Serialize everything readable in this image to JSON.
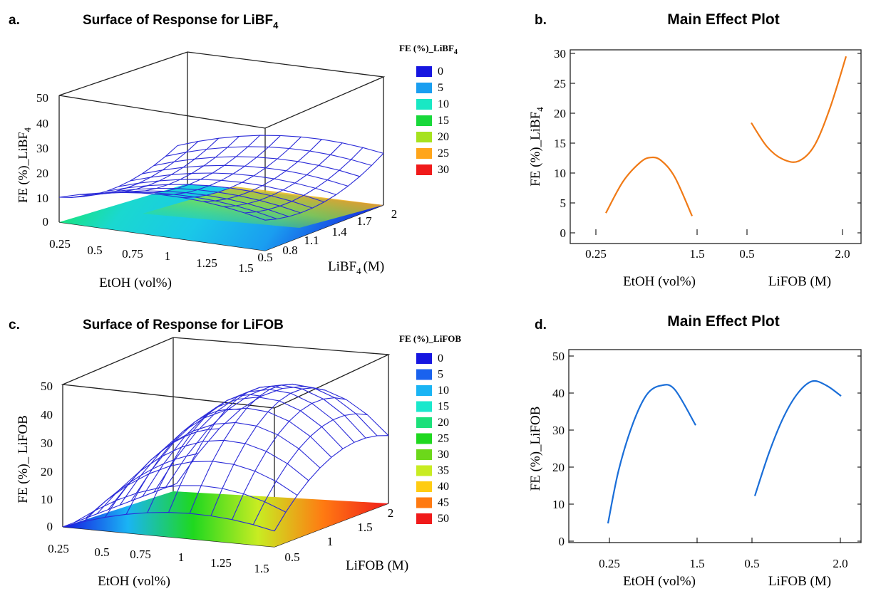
{
  "panels": {
    "a": {
      "letter": "a.",
      "title": "Surface of Response for LiBF",
      "title_sub": "4",
      "zaxis_label": "FE (%)_LiBF",
      "zaxis_label_sub": "4",
      "zaxis_ticks": [
        "0",
        "10",
        "20",
        "30",
        "40",
        "50"
      ],
      "xaxis_label": "EtOH (vol%)",
      "xaxis_ticks": [
        "0.25",
        "0.5",
        "0.75",
        "1",
        "1.25",
        "1.5"
      ],
      "yaxis_label_pre": "LiBF",
      "yaxis_label_sub": "4",
      "yaxis_label_post": "(M)",
      "yaxis_ticks": [
        "0.5",
        "0.8",
        "1.1",
        "1.4",
        "1.7",
        "2"
      ],
      "legend_title": "FE (%)_LiBF",
      "legend_title_sub": "4",
      "legend": [
        {
          "label": "0",
          "color": "#1616e0"
        },
        {
          "label": "5",
          "color": "#1a9ef0"
        },
        {
          "label": "10",
          "color": "#19e8c4"
        },
        {
          "label": "15",
          "color": "#18d83a"
        },
        {
          "label": "20",
          "color": "#a6e21e"
        },
        {
          "label": "25",
          "color": "#ffa51a"
        },
        {
          "label": "30",
          "color": "#f01a1a"
        }
      ]
    },
    "b": {
      "letter": "b.",
      "title": "Main Effect Plot",
      "ylabel": "FE (%)_LiBF",
      "ylabel_sub": "4",
      "y_ticks": [
        "0",
        "5",
        "10",
        "15",
        "20",
        "25",
        "30"
      ],
      "x_ticks": [
        "0.25",
        "1.5",
        "0.5",
        "2.0"
      ],
      "xlabel_left": "EtOH (vol%)",
      "xlabel_right": "LiFOB (M)",
      "line_color": "#f07a16"
    },
    "c": {
      "letter": "c.",
      "title": "Surface of Response for LiFOB",
      "zaxis_label": "FE (%)_ LiFOB",
      "zaxis_ticks": [
        "0",
        "10",
        "20",
        "30",
        "40",
        "50"
      ],
      "xaxis_label": "EtOH (vol%)",
      "xaxis_ticks": [
        "0.25",
        "0.5",
        "0.75",
        "1",
        "1.25",
        "1.5"
      ],
      "yaxis_label": "LiFOB (M)",
      "yaxis_ticks": [
        "0.5",
        "1",
        "1.5",
        "2"
      ],
      "legend_title": "FE (%)_LiFOB",
      "legend": [
        {
          "label": "0",
          "color": "#1616e0"
        },
        {
          "label": "5",
          "color": "#1a62ee"
        },
        {
          "label": "10",
          "color": "#1ab4f4"
        },
        {
          "label": "15",
          "color": "#1ae8cc"
        },
        {
          "label": "20",
          "color": "#1ce07a"
        },
        {
          "label": "25",
          "color": "#1fd81f"
        },
        {
          "label": "30",
          "color": "#6cd81a"
        },
        {
          "label": "35",
          "color": "#c8ec22"
        },
        {
          "label": "40",
          "color": "#ffcc12"
        },
        {
          "label": "45",
          "color": "#ff7a12"
        },
        {
          "label": "50",
          "color": "#f01a1a"
        }
      ]
    },
    "d": {
      "letter": "d.",
      "title": "Main Effect Plot",
      "ylabel": "FE (%)_LiFOB",
      "y_ticks": [
        "0",
        "10",
        "20",
        "30",
        "40",
        "50"
      ],
      "x_ticks": [
        "0.25",
        "1.5",
        "0.5",
        "2.0"
      ],
      "xlabel_left": "EtOH (vol%)",
      "xlabel_right": "LiFOB (M)",
      "line_color": "#1a6ed8"
    }
  },
  "chart_data": [
    {
      "type": "surface",
      "title": "Surface of Response for LiBF4",
      "xlabel": "EtOH (vol%)",
      "ylabel": "LiBF4 (M)",
      "zlabel": "FE (%)_LiBF4",
      "xlim": [
        0.25,
        1.5
      ],
      "ylim": [
        0.5,
        2
      ],
      "zlim": [
        0,
        50
      ]
    },
    {
      "type": "line",
      "title": "Main Effect Plot",
      "ylabel": "FE (%)_LiBF4",
      "ylim": [
        0,
        30
      ],
      "series": [
        {
          "x": [
            0.25,
            0.5,
            0.75,
            0.9,
            1.05,
            1.25,
            1.5
          ],
          "values": [
            3.3,
            8.6,
            11.8,
            12.6,
            12.1,
            9.3,
            2.8
          ]
        },
        {
          "x": [
            0.5,
            0.75,
            1.0,
            1.25,
            1.5,
            1.75,
            2.0
          ],
          "values": [
            18.4,
            14.4,
            12.3,
            12.0,
            14.6,
            21.0,
            29.5
          ]
        }
      ]
    },
    {
      "type": "surface",
      "title": "Surface of Response for LiFOB",
      "xlabel": "EtOH (vol%)",
      "ylabel": "LiFOB (M)",
      "zlabel": "FE (%)_ LiFOB",
      "xlim": [
        0.25,
        1.5
      ],
      "ylim": [
        0.5,
        2
      ],
      "zlim": [
        0,
        50
      ]
    },
    {
      "type": "line",
      "title": "Main Effect Plot",
      "ylabel": "FE (%)_LiFOB",
      "ylim": [
        0,
        50
      ],
      "series": [
        {
          "x": [
            0.25,
            0.4,
            0.6,
            0.8,
            1.0,
            1.2,
            1.5
          ],
          "values": [
            4.8,
            19.0,
            31.5,
            39.5,
            42.0,
            41.0,
            31.3
          ]
        },
        {
          "x": [
            0.5,
            0.75,
            1.0,
            1.25,
            1.5,
            1.75,
            2.0
          ],
          "values": [
            12.2,
            24.0,
            33.5,
            40.0,
            43.2,
            42.0,
            39.2
          ]
        }
      ]
    }
  ]
}
